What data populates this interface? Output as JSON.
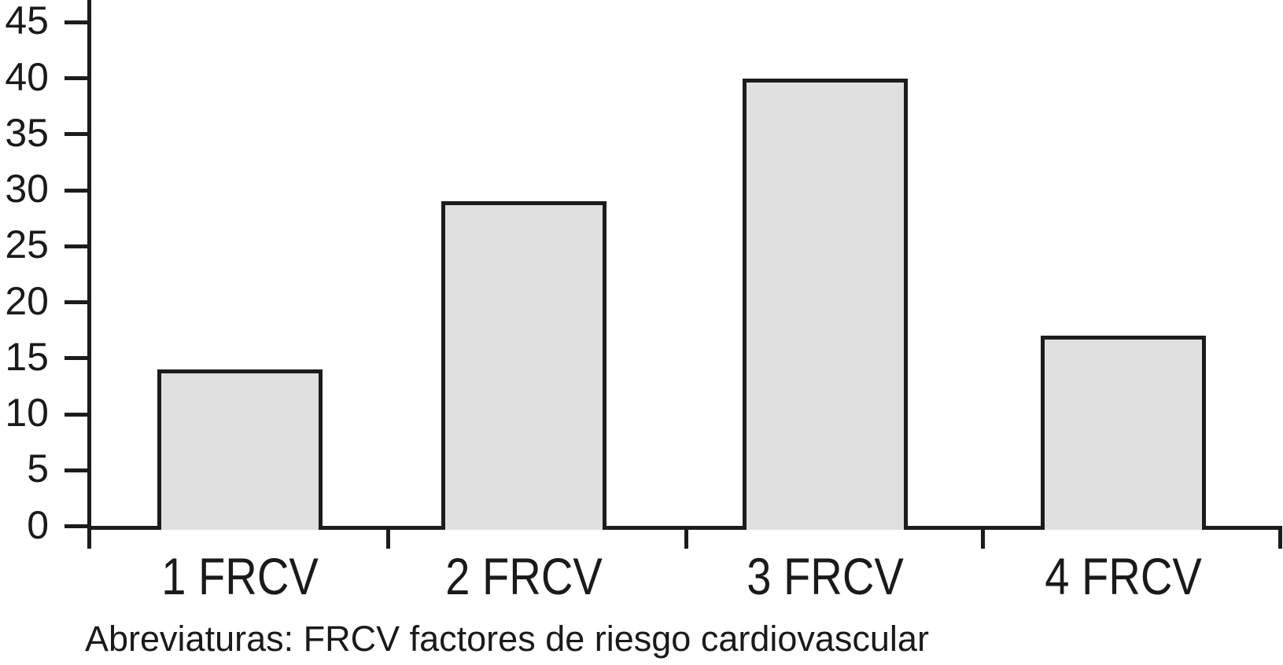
{
  "chart_data": {
    "type": "bar",
    "categories": [
      "1 FRCV",
      "2 FRCV",
      "3 FRCV",
      "4 FRCV"
    ],
    "values": [
      14,
      29,
      40,
      17
    ],
    "title": "",
    "xlabel": "",
    "ylabel": "",
    "ylim": [
      0,
      45
    ],
    "yticks": [
      0,
      5,
      10,
      15,
      20,
      25,
      30,
      35,
      40,
      45
    ],
    "grid": false,
    "legend": "none",
    "bar_fill_color": "#e0e0e0",
    "bar_border_color": "#1c1c1c",
    "axis_color": "#1c1c1c",
    "text_color": "#1a1a1a"
  },
  "caption": "Abreviaturas: FRCV factores de riesgo cardiovascular"
}
